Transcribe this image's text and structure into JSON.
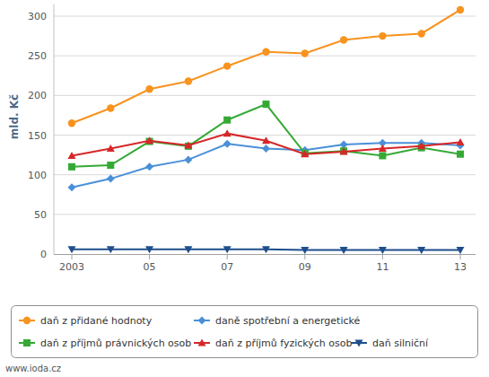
{
  "chart_data": {
    "type": "line",
    "y_label": "mld. Kč",
    "source": "www.ioda.cz",
    "categories": [
      "2003",
      null,
      "05",
      null,
      "07",
      null,
      "09",
      null,
      "11",
      null,
      "13"
    ],
    "series": [
      {
        "name": "daň z přidané hodnoty",
        "color": "#f7931e",
        "marker": "circle",
        "values": [
          165,
          184,
          208,
          218,
          237,
          255,
          253,
          270,
          275,
          278,
          308
        ]
      },
      {
        "name": "daně spotřební a energetické",
        "color": "#4a90d9",
        "marker": "diamond",
        "values": [
          84,
          95,
          110,
          119,
          139,
          133,
          131,
          138,
          140,
          140,
          137
        ]
      },
      {
        "name": "daň z příjmů právnických osob",
        "color": "#35a935",
        "marker": "square",
        "values": [
          110,
          112,
          142,
          136,
          169,
          189,
          127,
          130,
          124,
          134,
          126
        ]
      },
      {
        "name": "daň z příjmů fyzických osob",
        "color": "#d62728",
        "marker": "triangle",
        "values": [
          124,
          133,
          143,
          137,
          152,
          143,
          126,
          129,
          133,
          136,
          141
        ]
      },
      {
        "name": "daň silniční",
        "color": "#1f4e8c",
        "marker": "triangle-down",
        "values": [
          6,
          6,
          6,
          6,
          6,
          6,
          5,
          5,
          5,
          5,
          5
        ]
      }
    ],
    "ylim": [
      0,
      315
    ],
    "yticks": [
      0,
      50,
      100,
      150,
      200,
      250,
      300
    ],
    "grid": true,
    "legend": "bottom"
  }
}
